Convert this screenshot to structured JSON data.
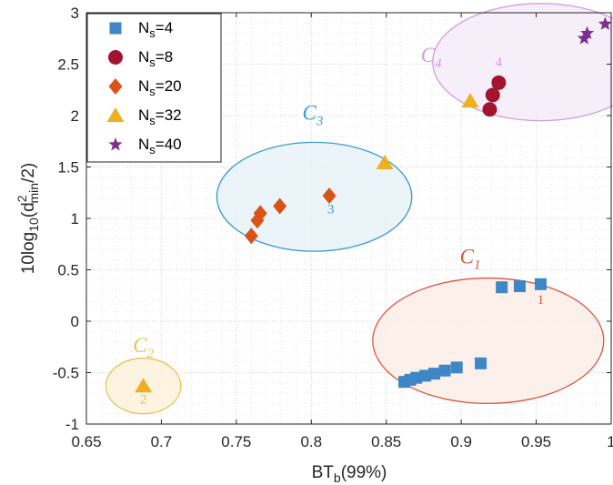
{
  "chart_data": {
    "type": "scatter",
    "xlabel": "BT",
    "xlabel_sub": "b",
    "xlabel_tail": "(99%)",
    "ylabel": "10log",
    "ylabel_sub1": "10",
    "ylabel_mid": "(d",
    "ylabel_sup": "2",
    "ylabel_sub2": "min",
    "ylabel_tail": "/2)",
    "xlim": [
      0.65,
      1.0
    ],
    "ylim": [
      -1,
      3
    ],
    "xticks": [
      "0.65",
      "0.7",
      "0.75",
      "0.8",
      "0.85",
      "0.9",
      "0.95",
      "1"
    ],
    "yticks": [
      "-1",
      "-0.5",
      "0",
      "0.5",
      "1",
      "1.5",
      "2",
      "2.5",
      "3"
    ],
    "grid": true,
    "legend_position": "top-left",
    "series": [
      {
        "name": "N",
        "name_sub": "s",
        "name_tail": "=4",
        "marker": "square",
        "color": "#3f86c6",
        "points": [
          [
            0.953,
            0.36
          ],
          [
            0.939,
            0.34
          ],
          [
            0.927,
            0.33
          ],
          [
            0.913,
            -0.41
          ],
          [
            0.897,
            -0.45
          ],
          [
            0.889,
            -0.48
          ],
          [
            0.882,
            -0.51
          ],
          [
            0.876,
            -0.53
          ],
          [
            0.87,
            -0.55
          ],
          [
            0.866,
            -0.57
          ],
          [
            0.862,
            -0.59
          ]
        ]
      },
      {
        "name": "N",
        "name_sub": "s",
        "name_tail": "=8",
        "marker": "circle",
        "color": "#a2142f",
        "points": [
          [
            0.925,
            2.32
          ],
          [
            0.921,
            2.2
          ],
          [
            0.919,
            2.06
          ]
        ]
      },
      {
        "name": "N",
        "name_sub": "s",
        "name_tail": "=20",
        "marker": "diamond",
        "color": "#d95319",
        "points": [
          [
            0.812,
            1.22
          ],
          [
            0.779,
            1.12
          ],
          [
            0.766,
            1.05
          ],
          [
            0.764,
            0.98
          ],
          [
            0.76,
            0.83
          ]
        ]
      },
      {
        "name": "N",
        "name_sub": "s",
        "name_tail": "=32",
        "marker": "triangle",
        "color": "#edb120",
        "points": [
          [
            0.849,
            1.54
          ],
          [
            0.906,
            2.14
          ],
          [
            0.688,
            -0.63
          ]
        ]
      },
      {
        "name": "N",
        "name_sub": "s",
        "name_tail": "=40",
        "marker": "star",
        "color": "#7e2f8e",
        "points": [
          [
            0.996,
            2.89
          ],
          [
            0.984,
            2.8
          ],
          [
            0.982,
            2.75
          ]
        ]
      }
    ],
    "clusters": [
      {
        "name": "C",
        "sub": "1",
        "mark": "1",
        "color": "#e0533f",
        "fill": "#fbede6",
        "cx": 0.918,
        "cy": -0.19,
        "rx": 0.077,
        "ry": 0.61,
        "label_x": 0.906,
        "label_y": 0.56,
        "mark_x": 0.953,
        "mark_y": 0.17
      },
      {
        "name": "C",
        "sub": "2",
        "mark": "2",
        "color": "#e9c153",
        "fill": "#fbf1db",
        "cx": 0.688,
        "cy": -0.63,
        "rx": 0.025,
        "ry": 0.27,
        "label_x": 0.688,
        "label_y": -0.3,
        "mark_x": 0.688,
        "mark_y": -0.8
      },
      {
        "name": "C",
        "sub": "3",
        "mark": "3",
        "color": "#3b9ad2",
        "fill": "#e7f2f7",
        "cx": 0.802,
        "cy": 1.21,
        "rx": 0.065,
        "ry": 0.53,
        "label_x": 0.801,
        "label_y": 1.96,
        "mark_x": 0.813,
        "mark_y": 1.05
      },
      {
        "name": "C",
        "sub": "4",
        "mark": "4",
        "color": "#d39be6",
        "fill": "#f5ecf8",
        "cx": 0.953,
        "cy": 2.52,
        "rx": 0.072,
        "ry": 0.57,
        "label_x": 0.88,
        "label_y": 2.52,
        "mark_x": 0.925,
        "mark_y": 2.48
      }
    ]
  }
}
